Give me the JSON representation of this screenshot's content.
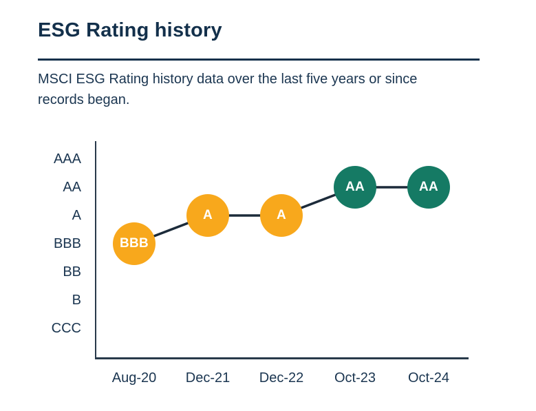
{
  "header": {
    "title": "ESG Rating history",
    "subtitle": "MSCI ESG Rating history data over the last five years or since records began."
  },
  "chart_data": {
    "type": "line",
    "title": "ESG Rating history",
    "xlabel": "",
    "ylabel": "",
    "y_scale_top_to_bottom": [
      "AAA",
      "AA",
      "A",
      "BBB",
      "BB",
      "B",
      "CCC"
    ],
    "categories": [
      "Aug-20",
      "Dec-21",
      "Dec-22",
      "Oct-23",
      "Oct-24"
    ],
    "points": [
      {
        "date": "Aug-20",
        "rating": "BBB",
        "color": "#F8A81C"
      },
      {
        "date": "Dec-21",
        "rating": "A",
        "color": "#F8A81C"
      },
      {
        "date": "Dec-22",
        "rating": "A",
        "color": "#F8A81C"
      },
      {
        "date": "Oct-23",
        "rating": "AA",
        "color": "#157A64"
      },
      {
        "date": "Oct-24",
        "rating": "AA",
        "color": "#157A64"
      }
    ],
    "legend": "none",
    "grid": "off"
  },
  "colors": {
    "rating_average_yellow": "#F8A81C",
    "rating_leader_green": "#157A64",
    "text_navy": "#1A3550",
    "title_navy": "#13304B",
    "trend_line": "#1C2B3A",
    "axis": "#28394A"
  }
}
